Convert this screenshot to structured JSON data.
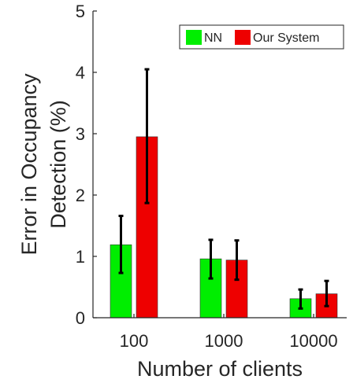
{
  "chart_data": {
    "type": "bar",
    "categories": [
      "100",
      "1000",
      "10000"
    ],
    "xlabel": "Number of clients",
    "ylabel": [
      "Error in Occupancy",
      "Detection (%)"
    ],
    "ylim": [
      0,
      5
    ],
    "yticks": [
      "0",
      "1",
      "2",
      "3",
      "4",
      "5"
    ],
    "legend_position": "top-right",
    "series": [
      {
        "name": "NN",
        "color": "#00ee00",
        "values": [
          1.19,
          0.96,
          0.31
        ],
        "error_low": [
          0.73,
          0.64,
          0.15
        ],
        "error_high": [
          1.66,
          1.27,
          0.46
        ]
      },
      {
        "name": "Our System",
        "color": "#ee0000",
        "values": [
          2.95,
          0.94,
          0.39
        ],
        "error_low": [
          1.87,
          0.62,
          0.19
        ],
        "error_high": [
          4.05,
          1.26,
          0.6
        ]
      }
    ]
  }
}
